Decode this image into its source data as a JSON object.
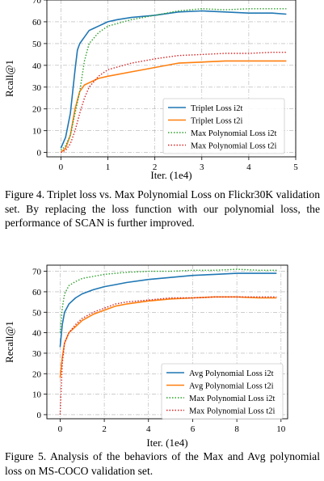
{
  "figures": [
    {
      "caption": "Figure 4. Triplet loss vs. Max Polynomial Loss on Flickr30K validation set.  By replacing the loss function with our polynomial loss, the performance of SCAN is further improved."
    },
    {
      "caption": "Figure 5. Analysis of the behaviors of the Max and Avg polynomial loss on MS-COCO validation set."
    }
  ],
  "chart_data": [
    {
      "type": "line",
      "xlabel": "Iter. (1e4)",
      "ylabel": "Rcall@1",
      "xlim": [
        -0.3,
        5.0
      ],
      "ylim": [
        -2,
        70
      ],
      "xticks": [
        0,
        1,
        2,
        3,
        4,
        5
      ],
      "yticks": [
        0,
        10,
        20,
        30,
        40,
        50,
        60,
        70
      ],
      "grid": true,
      "legend_position": "lower-right",
      "series": [
        {
          "name": "Triplet Loss i2t",
          "color": "#1f77b4",
          "style": "solid",
          "x": [
            0,
            0.1,
            0.2,
            0.3,
            0.35,
            0.4,
            0.5,
            0.6,
            0.7,
            0.8,
            0.9,
            1.0,
            1.2,
            1.5,
            2.0,
            2.5,
            3.0,
            3.5,
            4.0,
            4.5,
            4.8
          ],
          "y": [
            2,
            7,
            18,
            38,
            47,
            50,
            53,
            56,
            57,
            58,
            59,
            60,
            61,
            62,
            63,
            64.5,
            65,
            64.5,
            64,
            64,
            63.5
          ]
        },
        {
          "name": "Triplet Loss t2i",
          "color": "#ff7f0e",
          "style": "solid",
          "x": [
            0,
            0.1,
            0.2,
            0.3,
            0.4,
            0.5,
            0.6,
            0.8,
            1.0,
            1.5,
            2.0,
            2.5,
            3.0,
            3.5,
            4.0,
            4.5,
            4.8
          ],
          "y": [
            0,
            2,
            8,
            20,
            28,
            31,
            32,
            34,
            35,
            37,
            39,
            41,
            41.5,
            42,
            42,
            42,
            42
          ]
        },
        {
          "name": "Max Polynomial Loss i2t",
          "color": "#2ca02c",
          "style": "dotted",
          "x": [
            0,
            0.1,
            0.2,
            0.3,
            0.4,
            0.5,
            0.6,
            0.8,
            1.0,
            1.5,
            2.0,
            2.5,
            3.0,
            3.5,
            4.0,
            4.5,
            4.8
          ],
          "y": [
            1,
            3,
            8,
            18,
            28,
            42,
            50,
            55,
            58,
            61,
            63,
            65,
            66,
            65.5,
            66,
            66,
            66
          ]
        },
        {
          "name": "Max Polynomial Loss t2i",
          "color": "#d62728",
          "style": "dotted",
          "x": [
            0,
            0.1,
            0.2,
            0.3,
            0.4,
            0.5,
            0.6,
            0.8,
            1.0,
            1.5,
            2.0,
            2.5,
            3.0,
            3.5,
            4.0,
            4.5,
            4.8
          ],
          "y": [
            0,
            1,
            4,
            10,
            18,
            25,
            30,
            35,
            38,
            41,
            43,
            44.5,
            45,
            45.5,
            45.5,
            46,
            46
          ]
        }
      ]
    },
    {
      "type": "line",
      "xlabel": "Iter. (1e4)",
      "ylabel": "Recall@1",
      "xlim": [
        -0.6,
        10.3
      ],
      "ylim": [
        -2,
        73
      ],
      "xticks": [
        0,
        2,
        4,
        6,
        8,
        10
      ],
      "yticks": [
        0,
        10,
        20,
        30,
        40,
        50,
        60,
        70
      ],
      "grid": true,
      "legend_position": "lower-right",
      "series": [
        {
          "name": "Avg Polynomial Loss i2t",
          "color": "#1f77b4",
          "style": "solid",
          "x": [
            0,
            0.1,
            0.2,
            0.4,
            0.7,
            1.0,
            1.5,
            2.0,
            2.5,
            3.0,
            4.0,
            5.0,
            6.0,
            7.0,
            8.0,
            9.0,
            9.8
          ],
          "y": [
            33,
            44,
            50,
            54,
            57,
            59,
            61,
            62.5,
            63.5,
            64.5,
            66,
            67,
            68,
            68.5,
            69,
            69,
            69
          ]
        },
        {
          "name": "Avg Polynomial Loss t2i",
          "color": "#ff7f0e",
          "style": "solid",
          "x": [
            0,
            0.1,
            0.2,
            0.4,
            0.7,
            1.0,
            1.5,
            2.0,
            2.5,
            3.0,
            4.0,
            5.0,
            6.0,
            7.0,
            8.0,
            9.0,
            9.8
          ],
          "y": [
            18,
            28,
            35,
            40,
            43,
            46,
            49,
            51,
            53,
            54,
            55.5,
            56.5,
            57,
            57.5,
            57.5,
            57,
            57
          ]
        },
        {
          "name": "Max Polynomial Loss i2t",
          "color": "#2ca02c",
          "style": "dotted",
          "x": [
            0,
            0.1,
            0.2,
            0.4,
            0.7,
            1.0,
            1.5,
            2.0,
            2.5,
            3.0,
            4.0,
            5.0,
            6.0,
            7.0,
            8.0,
            9.0,
            9.8
          ],
          "y": [
            40,
            52,
            59,
            63,
            65,
            66.5,
            67.5,
            68.5,
            69,
            69.5,
            70,
            70,
            70.5,
            70.5,
            71,
            70.5,
            70.5
          ]
        },
        {
          "name": "Max Polynomial Loss t2i",
          "color": "#d62728",
          "style": "dotted",
          "x": [
            0,
            0.1,
            0.2,
            0.4,
            0.7,
            1.0,
            1.5,
            2.0,
            2.5,
            3.0,
            4.0,
            5.0,
            6.0,
            7.0,
            8.0,
            9.0,
            9.8
          ],
          "y": [
            0,
            25,
            35,
            40,
            44,
            47,
            50,
            52,
            54,
            55,
            56,
            57,
            57,
            57.5,
            57.5,
            57.5,
            57.5
          ]
        }
      ]
    }
  ]
}
